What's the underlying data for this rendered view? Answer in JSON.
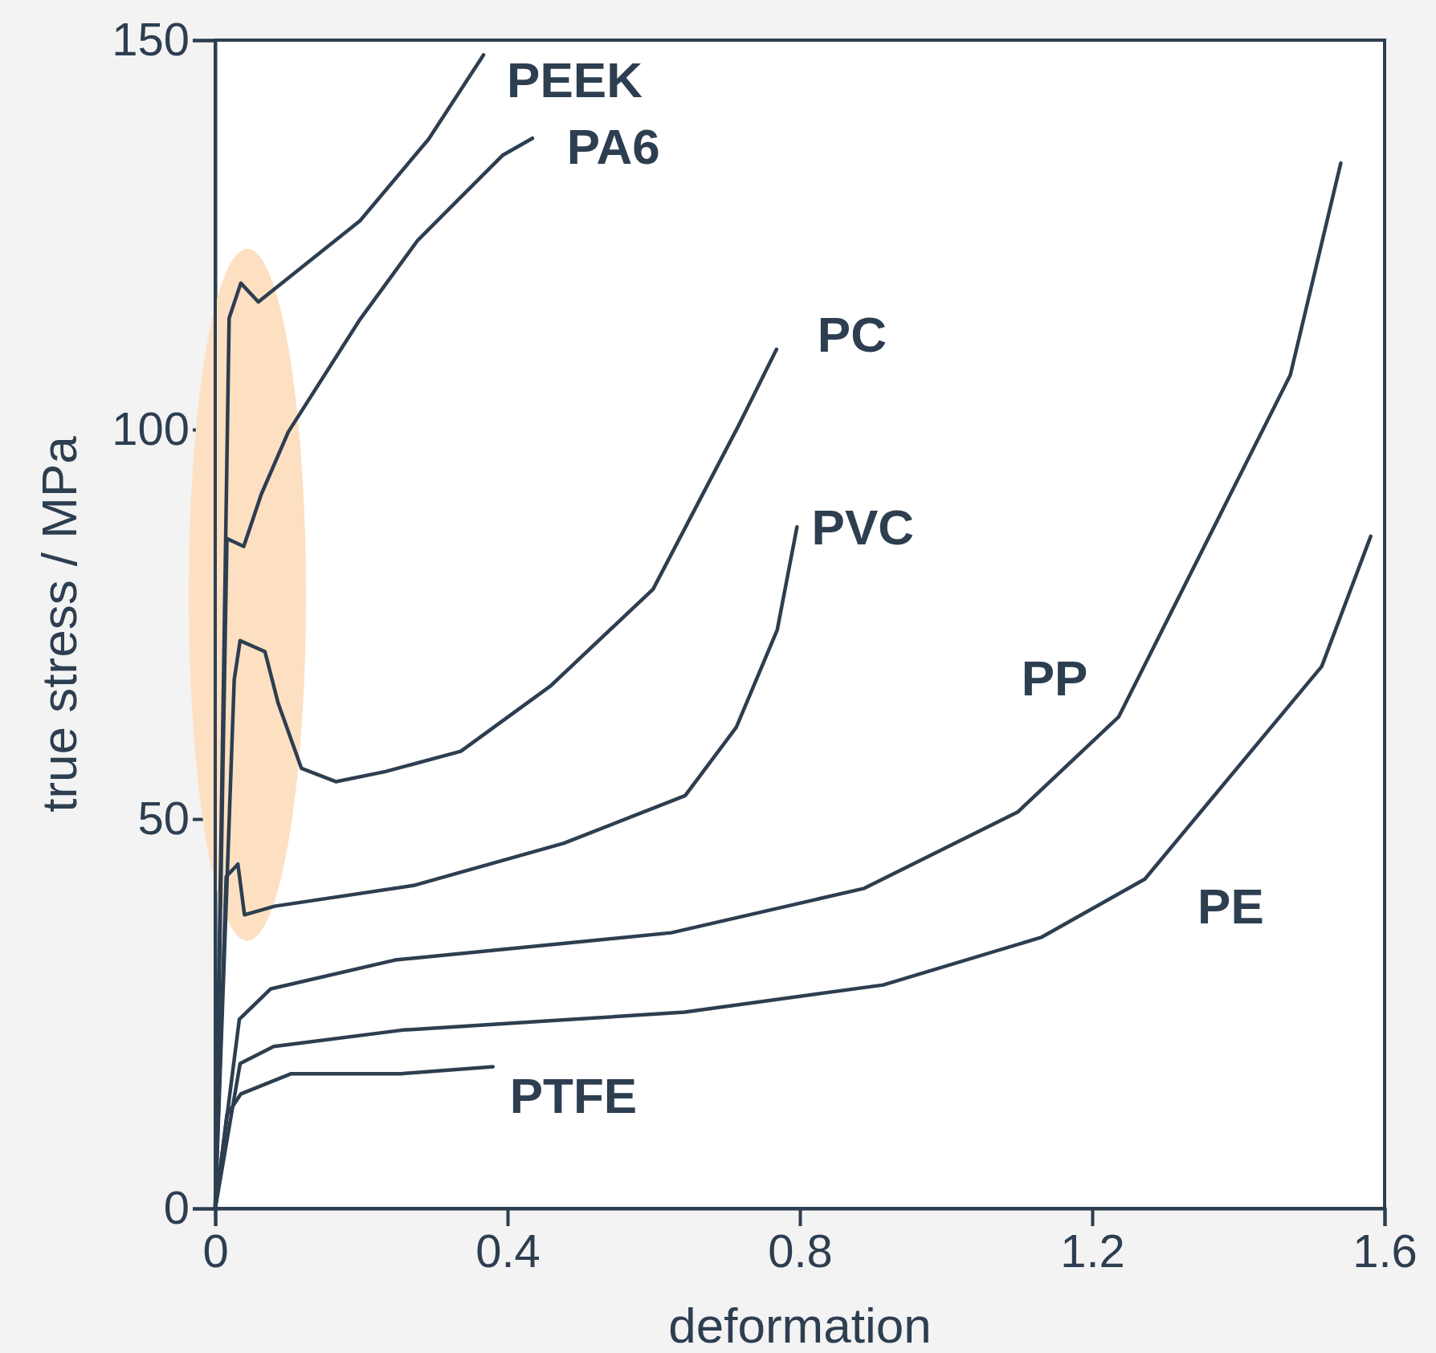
{
  "chart_data": {
    "type": "line",
    "xlabel": "deformation",
    "ylabel": "true stress / MPa",
    "xlim": [
      0,
      1.6
    ],
    "xticks": [
      0,
      0.4,
      0.8,
      1.2,
      1.6
    ],
    "ylim": [
      0,
      150
    ],
    "yticks": [
      0,
      50,
      100,
      150
    ],
    "grid": false,
    "legend": false,
    "marker": "none",
    "line_style": "solid",
    "series": [
      {
        "name": "PEEK",
        "color": "#2d3e50",
        "x": [
          0,
          0.019,
          0.035,
          0.059,
          0.198,
          0.292,
          0.367
        ],
        "values": [
          0,
          114.3,
          118.8,
          116.4,
          126.8,
          137.3,
          148.1
        ]
      },
      {
        "name": "PA6",
        "color": "#2d3e50",
        "x": [
          0,
          0.016,
          0.039,
          0.063,
          0.1,
          0.197,
          0.277,
          0.393,
          0.434
        ],
        "values": [
          0,
          86,
          85,
          91.7,
          99.7,
          114,
          124.3,
          135.2,
          137.4
        ]
      },
      {
        "name": "PC",
        "color": "#2d3e50",
        "x": [
          0,
          0.026,
          0.034,
          0.068,
          0.086,
          0.118,
          0.165,
          0.233,
          0.336,
          0.459,
          0.599,
          0.716,
          0.768
        ],
        "values": [
          0,
          67.9,
          72.9,
          71.5,
          64.9,
          56.5,
          54.8,
          56.1,
          58.7,
          67.1,
          79.5,
          100.5,
          110.3
        ]
      },
      {
        "name": "PVC",
        "color": "#2d3e50",
        "x": [
          0,
          0.015,
          0.031,
          0.04,
          0.081,
          0.273,
          0.477,
          0.643,
          0.713,
          0.769,
          0.796
        ],
        "values": [
          0,
          42.6,
          44.2,
          37.7,
          38.8,
          41.5,
          46.9,
          53,
          61.8,
          74.3,
          87.5
        ]
      },
      {
        "name": "PP",
        "color": "#2d3e50",
        "x": [
          0,
          0.033,
          0.076,
          0.246,
          0.624,
          0.888,
          1.098,
          1.236,
          1.471,
          1.54
        ],
        "values": [
          0,
          24.3,
          28.2,
          31.9,
          35.4,
          41.1,
          50.9,
          63.1,
          107,
          134.2
        ]
      },
      {
        "name": "PE",
        "color": "#2d3e50",
        "x": [
          0,
          0.034,
          0.08,
          0.256,
          0.642,
          0.914,
          1.13,
          1.272,
          1.514,
          1.581
        ],
        "values": [
          0,
          18.6,
          20.8,
          22.9,
          25.2,
          28.7,
          34.8,
          42.3,
          69.6,
          86.3
        ]
      },
      {
        "name": "PTFE",
        "color": "#2d3e50",
        "x": [
          0,
          0.016,
          0.035,
          0.104,
          0.254,
          0.38
        ],
        "values": [
          0,
          12,
          14.7,
          17.3,
          17.3,
          18.2
        ]
      }
    ]
  }
}
